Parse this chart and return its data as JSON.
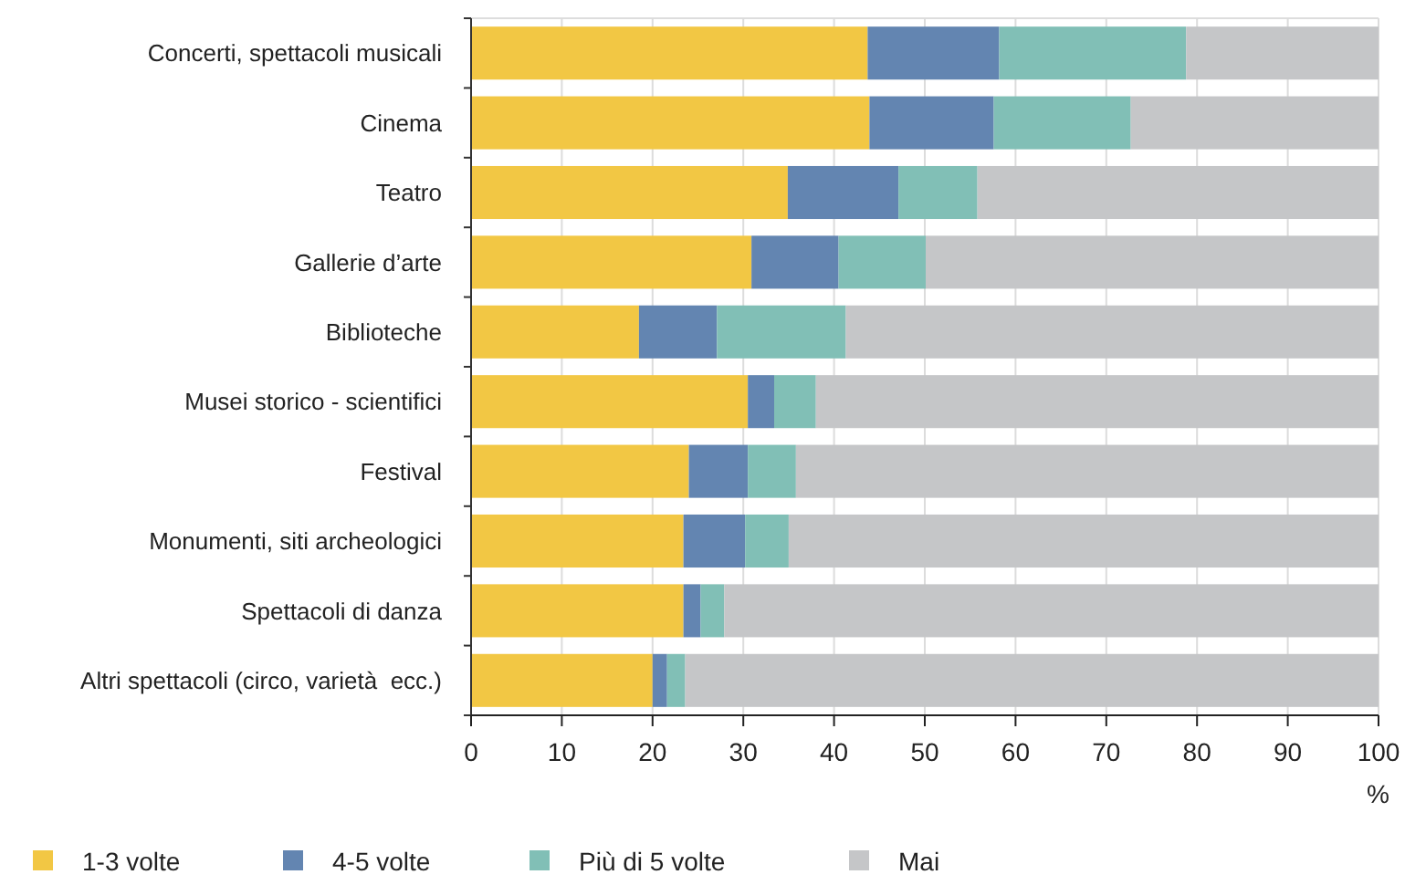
{
  "chart_data": {
    "type": "bar",
    "orientation": "horizontal",
    "stacked": true,
    "categories": [
      "Concerti, spettacoli musicali",
      "Cinema",
      "Teatro",
      "Gallerie d’arte",
      "Biblioteche",
      "Musei storico - scientifici",
      "Festival",
      "Monumenti, siti archeologici",
      "Spettacoli di danza",
      "Altri spettacoli (circo, varietà  ecc.)"
    ],
    "series": [
      {
        "name": "1-3 volte",
        "color": "#f2c744",
        "values": [
          43.7,
          43.9,
          34.9,
          30.9,
          18.5,
          30.5,
          24.0,
          23.4,
          23.4,
          20.0
        ]
      },
      {
        "name": "4-5 volte",
        "color": "#6385b1",
        "values": [
          14.5,
          13.7,
          12.2,
          9.6,
          8.6,
          2.9,
          6.5,
          6.8,
          1.9,
          1.6
        ]
      },
      {
        "name": "Più di 5 volte",
        "color": "#81bfb6",
        "values": [
          20.6,
          15.1,
          8.7,
          9.6,
          14.2,
          4.6,
          5.3,
          4.8,
          2.6,
          2.0
        ]
      },
      {
        "name": "Mai",
        "color": "#c5c6c8",
        "values": [
          21.2,
          27.3,
          44.2,
          49.9,
          58.7,
          62.0,
          64.2,
          65.0,
          72.1,
          76.4
        ]
      }
    ],
    "xlabel": "%",
    "xlim": [
      0,
      100
    ],
    "xticks": [
      0,
      10,
      20,
      30,
      40,
      50,
      60,
      70,
      80,
      90,
      100
    ],
    "grid": "x",
    "legend": "bottom"
  }
}
